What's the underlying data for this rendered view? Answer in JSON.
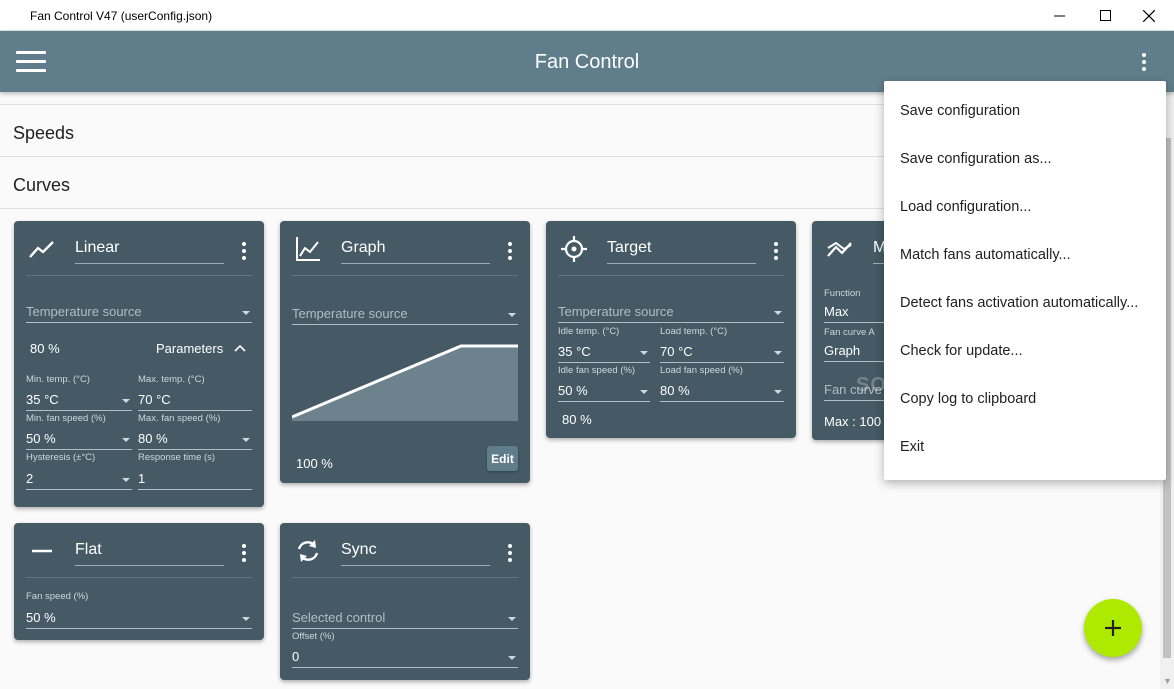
{
  "window": {
    "title": "Fan Control V47 (userConfig.json)"
  },
  "appbar": {
    "title": "Fan Control"
  },
  "sections": {
    "speeds": "Speeds",
    "curves": "Curves"
  },
  "cards": {
    "linear": {
      "name": "Linear",
      "temp_source_placeholder": "Temperature source",
      "output": "80 %",
      "params_label": "Parameters",
      "min_temp_label": "Min. temp. (°C)",
      "min_temp": "35 °C",
      "max_temp_label": "Max. temp. (°C)",
      "max_temp": "70 °C",
      "min_fan_label": "Min. fan speed (%)",
      "min_fan": "50 %",
      "max_fan_label": "Max. fan speed (%)",
      "max_fan": "80 %",
      "hysteresis_label": "Hysteresis (±°C)",
      "hysteresis": "2",
      "response_label": "Response time (s)",
      "response": "1"
    },
    "graph": {
      "name": "Graph",
      "temp_source_placeholder": "Temperature source",
      "output": "100 %",
      "edit_label": "Edit"
    },
    "target": {
      "name": "Target",
      "temp_source_placeholder": "Temperature source",
      "idle_temp_label": "Idle temp. (°C)",
      "idle_temp": "35 °C",
      "load_temp_label": "Load temp. (°C)",
      "load_temp": "70 °C",
      "idle_fan_label": "Idle fan speed (%)",
      "idle_fan": "50 %",
      "load_fan_label": "Load fan speed (%)",
      "load_fan": "80 %",
      "output": "80 %"
    },
    "mix": {
      "name": "M",
      "function_label": "Function",
      "function": "Max",
      "curve_a_label": "Fan curve A",
      "curve_a": "Graph",
      "curve_b_placeholder": "Fan curve",
      "output": "Max : 100"
    },
    "flat": {
      "name": "Flat",
      "fan_speed_label": "Fan speed (%)",
      "fan_speed": "50 %"
    },
    "sync": {
      "name": "Sync",
      "selected_placeholder": "Selected control",
      "offset_label": "Offset (%)",
      "offset": "0"
    }
  },
  "menu": {
    "items": [
      "Save configuration",
      "Save configuration as...",
      "Load configuration...",
      "Match fans automatically...",
      "Detect fans activation automatically...",
      "Check for update...",
      "Copy log to clipboard",
      "Exit"
    ]
  },
  "watermark": "SOFTPEDIA",
  "colors": {
    "appbar": "#607d8b",
    "card": "#455a64",
    "fab": "#aeea00"
  },
  "icons": {
    "linear": "linear-curve-icon",
    "graph": "graph-curve-icon",
    "target": "target-crosshair-icon",
    "mix": "mix-curve-icon",
    "flat": "flat-line-icon",
    "sync": "sync-icon",
    "fab": "plus-icon"
  }
}
